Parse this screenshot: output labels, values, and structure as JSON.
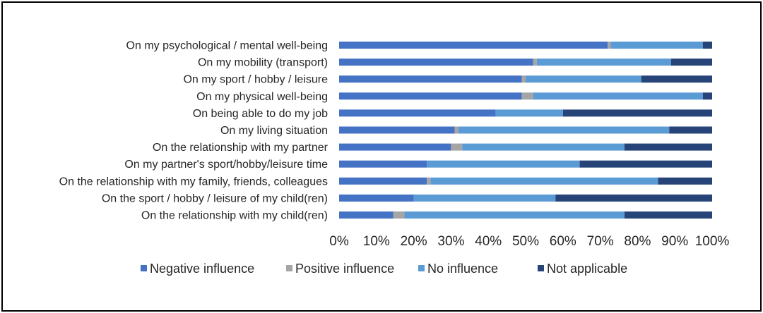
{
  "chart_data": {
    "type": "bar",
    "orientation": "horizontal",
    "stacked": "percent",
    "categories": [
      "On my psychological / mental well-being",
      "On my mobility (transport)",
      "On my sport / hobby / leisure",
      "On my physical well-being",
      "On being able to do my job",
      "On my living situation",
      "On the relationship with my partner",
      "On my partner's sport/hobby/leisure time",
      "On the relationship with my family, friends, colleagues",
      "On the sport / hobby / leisure of my child(ren)",
      "On the relationship with my child(ren)"
    ],
    "series": [
      {
        "name": "Negative influence",
        "color": "#4472C4",
        "values": [
          72,
          52,
          49,
          49,
          42,
          31,
          30,
          23.5,
          23.5,
          20,
          14.5
        ]
      },
      {
        "name": "Positive influence",
        "color": "#A5A5A5",
        "values": [
          0.8,
          1,
          1,
          3,
          0,
          1,
          3,
          0,
          1,
          0,
          3
        ]
      },
      {
        "name": "No influence",
        "color": "#5B9BD5",
        "values": [
          24.7,
          36,
          31,
          45.5,
          18,
          56.5,
          43.5,
          41,
          61,
          38,
          59
        ]
      },
      {
        "name": "Not applicable",
        "color": "#264478",
        "values": [
          2.5,
          11,
          19,
          2.5,
          40,
          11.5,
          23.5,
          35.5,
          14.5,
          42,
          23.5
        ]
      }
    ],
    "x_ticks": [
      "0%",
      "10%",
      "20%",
      "30%",
      "40%",
      "50%",
      "60%",
      "70%",
      "80%",
      "90%",
      "100%"
    ],
    "xlim": [
      0,
      100
    ],
    "grid": false,
    "legend_position": "bottom"
  }
}
